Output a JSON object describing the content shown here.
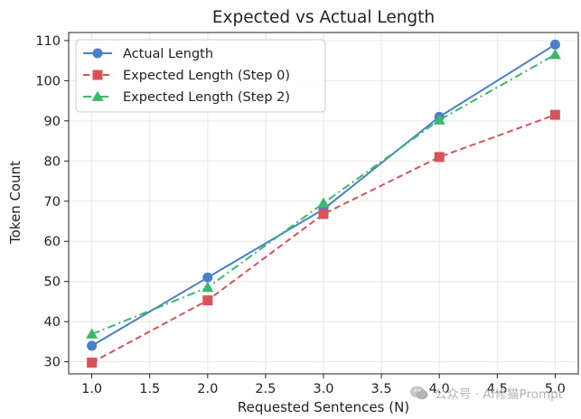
{
  "chart_data": {
    "type": "line",
    "title": "Expected vs Actual Length",
    "xlabel": "Requested Sentences (N)",
    "ylabel": "Token Count",
    "xlim": [
      0.8,
      5.2
    ],
    "ylim": [
      27,
      112
    ],
    "xticks": [
      1.0,
      1.5,
      2.0,
      2.5,
      3.0,
      3.5,
      4.0,
      4.5,
      5.0
    ],
    "xtick_labels": [
      "1.0",
      "1.5",
      "2.0",
      "2.5",
      "3.0",
      "3.5",
      "4.0",
      "4.5",
      "5.0"
    ],
    "yticks": [
      30,
      40,
      50,
      60,
      70,
      80,
      90,
      100,
      110
    ],
    "ytick_labels": [
      "30",
      "40",
      "50",
      "60",
      "70",
      "80",
      "90",
      "100",
      "110"
    ],
    "grid": true,
    "legend_position": "top-left",
    "series": [
      {
        "name": "Actual Length",
        "color": "#4a7fcb",
        "dash": "solid",
        "marker": "circle",
        "x": [
          1,
          2,
          3,
          4,
          5
        ],
        "y": [
          34,
          51,
          68,
          91,
          109
        ]
      },
      {
        "name": "Expected Length (Step 0)",
        "color": "#d9525a",
        "dash": "dashed",
        "marker": "square",
        "x": [
          1,
          2,
          3,
          4,
          5
        ],
        "y": [
          29.8,
          45.3,
          66.8,
          81,
          91.5
        ]
      },
      {
        "name": "Expected Length (Step 2)",
        "color": "#3cb86a",
        "dash": "dashdot",
        "marker": "triangle",
        "x": [
          1,
          2,
          3,
          4,
          5
        ],
        "y": [
          36.9,
          48.5,
          69.5,
          90.2,
          106.5
        ]
      }
    ]
  },
  "watermark": {
    "text": "公众号 · AI修猫Prompt",
    "icon": "wechat-icon"
  }
}
